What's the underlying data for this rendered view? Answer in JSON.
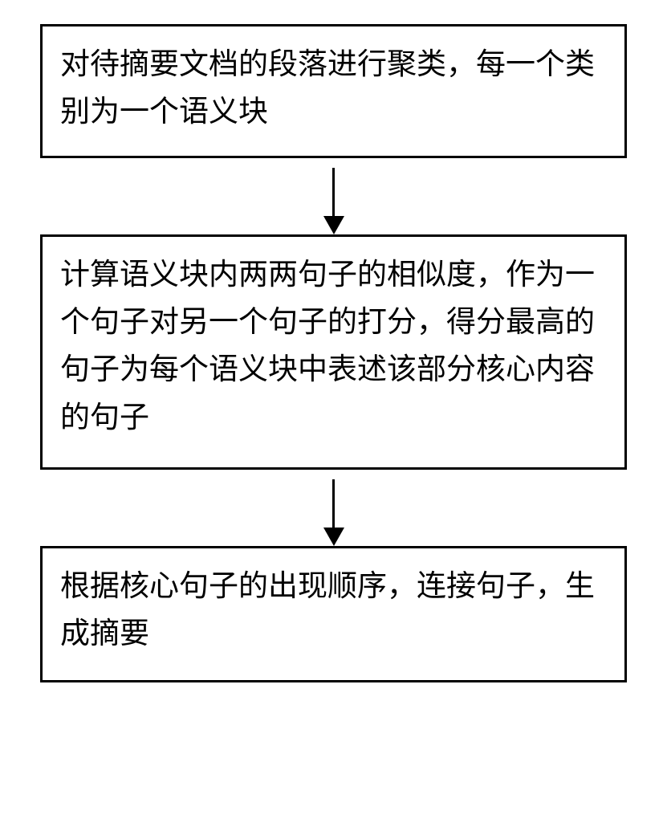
{
  "flowchart": {
    "type": "flowchart",
    "background_color": "#ffffff",
    "border_color": "#000000",
    "border_width": 3,
    "text_color": "#000000",
    "font_size": 37,
    "font_family": "SimSun",
    "arrow_color": "#000000",
    "arrow_line_width": 3,
    "arrow_head_size": 23,
    "nodes": [
      {
        "id": "step1",
        "text": "对待摘要文档的段落进行聚类，每一个类别为一个语义块",
        "order": 1
      },
      {
        "id": "step2",
        "text": "计算语义块内两两句子的相似度，作为一个句子对另一个句子的打分，得分最高的句子为每个语义块中表述该部分核心内容的句子",
        "order": 2
      },
      {
        "id": "step3",
        "text": "根据核心句子的出现顺序，连接句子，生成摘要",
        "order": 3
      }
    ],
    "edges": [
      {
        "from": "step1",
        "to": "step2"
      },
      {
        "from": "step2",
        "to": "step3"
      }
    ]
  }
}
